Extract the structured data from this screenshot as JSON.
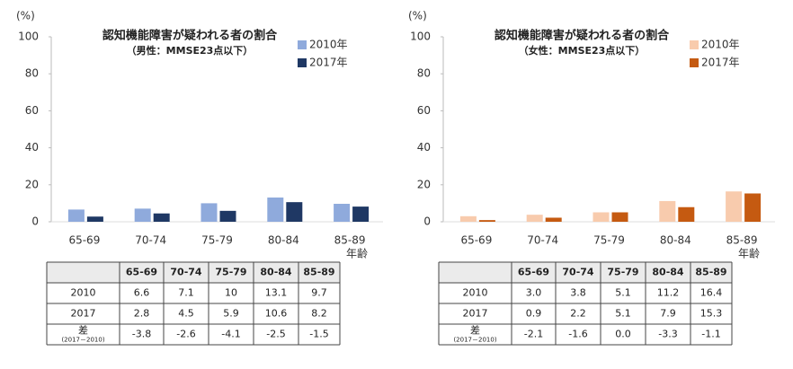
{
  "chart_data": [
    {
      "type": "bar",
      "title": "認知機能障害が疑われる者の割合",
      "subtitle": "（男性：MMSE23点以下）",
      "y_unit": "(%)",
      "x_label": "年齢",
      "categories": [
        "65-69",
        "70-74",
        "75-79",
        "80-84",
        "85-89"
      ],
      "series": [
        {
          "name": "2010年",
          "color": "#8faadc",
          "values": [
            6.6,
            7.1,
            10,
            13.1,
            9.7
          ]
        },
        {
          "name": "2017年",
          "color": "#1f3864",
          "values": [
            2.8,
            4.5,
            5.9,
            10.6,
            8.2
          ]
        }
      ],
      "ylim": [
        0,
        100
      ],
      "yticks": [
        0,
        20,
        40,
        60,
        80,
        100
      ],
      "table": {
        "rows": [
          {
            "label": "2010",
            "cells": [
              "6.6",
              "7.1",
              "10",
              "13.1",
              "9.7"
            ]
          },
          {
            "label": "2017",
            "cells": [
              "2.8",
              "4.5",
              "5.9",
              "10.6",
              "8.2"
            ]
          },
          {
            "label": "差",
            "sublabel": "(2017－2010)",
            "cells": [
              "-3.8",
              "-2.6",
              "-4.1",
              "-2.5",
              "-1.5"
            ]
          }
        ]
      }
    },
    {
      "type": "bar",
      "title": "認知機能障害が疑われる者の割合",
      "subtitle": "（女性：MMSE23点以下）",
      "y_unit": "(%)",
      "x_label": "年齢",
      "categories": [
        "65-69",
        "70-74",
        "75-79",
        "80-84",
        "85-89"
      ],
      "series": [
        {
          "name": "2010年",
          "color": "#f8cbad",
          "values": [
            3.0,
            3.8,
            5.1,
            11.2,
            16.4
          ]
        },
        {
          "name": "2017年",
          "color": "#c55a11",
          "values": [
            0.9,
            2.2,
            5.1,
            7.9,
            15.3
          ]
        }
      ],
      "ylim": [
        0,
        100
      ],
      "yticks": [
        0,
        20,
        40,
        60,
        80,
        100
      ],
      "table": {
        "rows": [
          {
            "label": "2010",
            "cells": [
              "3.0",
              "3.8",
              "5.1",
              "11.2",
              "16.4"
            ]
          },
          {
            "label": "2017",
            "cells": [
              "0.9",
              "2.2",
              "5.1",
              "7.9",
              "15.3"
            ]
          },
          {
            "label": "差",
            "sublabel": "(2017－2010)",
            "cells": [
              "-2.1",
              "-1.6",
              "0.0",
              "-3.3",
              "-1.1"
            ]
          }
        ]
      }
    }
  ]
}
